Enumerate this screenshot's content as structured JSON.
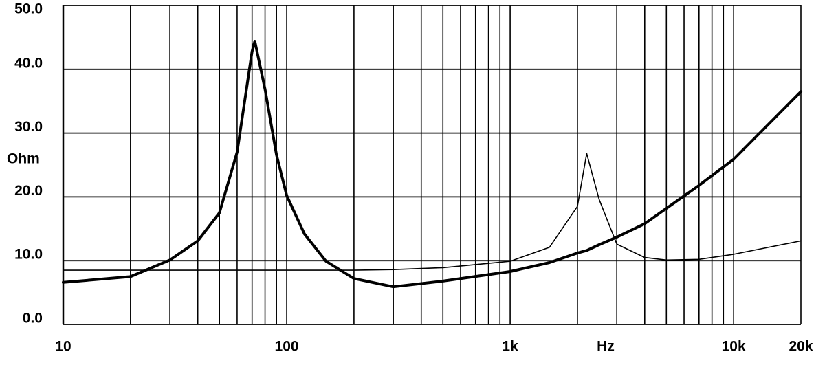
{
  "chart_data": {
    "type": "line",
    "log_x": true,
    "grid": true,
    "minor_grid": true,
    "x_label": "Hz",
    "y_label": "Ohm",
    "xlim": [
      10,
      20000
    ],
    "ylim": [
      0,
      50
    ],
    "xticks": [
      10,
      100,
      {
        "value": 1000,
        "label": "1k"
      },
      {
        "value": 10000,
        "label": "10k"
      },
      {
        "value": 20000,
        "label": "20k"
      }
    ],
    "yticks": [
      {
        "value": 0,
        "label": "0.0"
      },
      {
        "value": 10,
        "label": "10.0"
      },
      {
        "value": 20,
        "label": "20.0"
      },
      {
        "value": 30,
        "label": "30.0"
      },
      {
        "value": 40,
        "label": "40.0"
      },
      {
        "value": 50,
        "label": "50.0"
      }
    ],
    "x": [
      10,
      20,
      30,
      40,
      50,
      60,
      70,
      72,
      80,
      90,
      100,
      120,
      150,
      200,
      300,
      500,
      1000,
      1500,
      2000,
      2200,
      2500,
      3000,
      4000,
      5000,
      7000,
      10000,
      20000
    ],
    "series": [
      {
        "color": "#000000",
        "line_width": 4,
        "values": [
          6.6,
          7.5,
          10.1,
          13.1,
          17.5,
          27,
          42.8,
          44.4,
          36.9,
          26.6,
          20.2,
          14.2,
          9.9,
          7.2,
          5.9,
          6.8,
          8.3,
          9.7,
          11.2,
          11.6,
          12.5,
          13.7,
          15.8,
          18.2,
          21.8,
          25.9,
          36.5
        ]
      },
      {
        "color": "#000000",
        "line_width": 1.6,
        "values": [
          8.5,
          8.5,
          8.5,
          8.5,
          8.5,
          8.5,
          8.5,
          8.5,
          8.5,
          8.5,
          8.5,
          8.5,
          8.5,
          8.5,
          8.6,
          8.9,
          9.9,
          12.1,
          18.5,
          26.8,
          19.6,
          12.6,
          10.5,
          10.1,
          10.2,
          11.0,
          13.1
        ]
      }
    ]
  }
}
